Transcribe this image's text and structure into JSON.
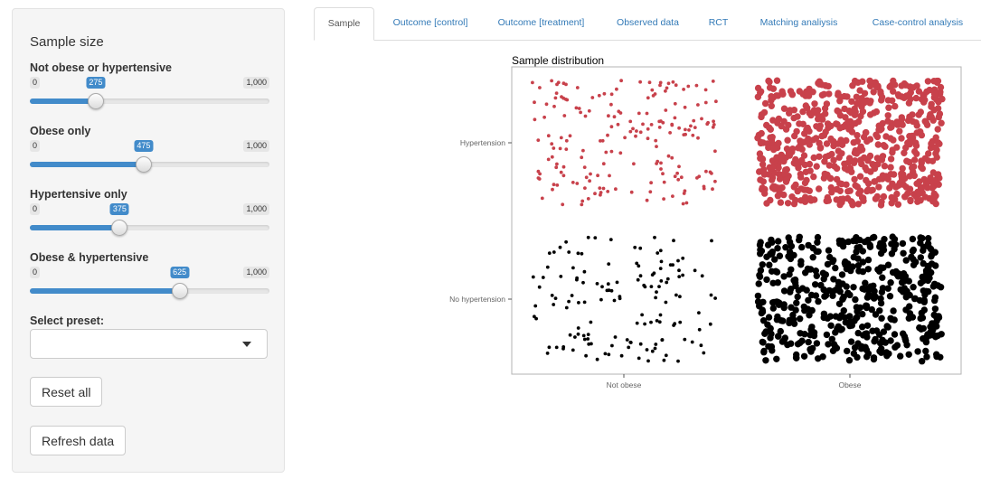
{
  "sidebar": {
    "title": "Sample size",
    "sliders": [
      {
        "label": "Not obese or hypertensive",
        "min": "0",
        "max": "1,000",
        "value": 275
      },
      {
        "label": "Obese only",
        "min": "0",
        "max": "1,000",
        "value": 475
      },
      {
        "label": "Hypertensive only",
        "min": "0",
        "max": "1,000",
        "value": 375
      },
      {
        "label": "Obese & hypertensive",
        "min": "0",
        "max": "1,000",
        "value": 625
      }
    ],
    "slider_range": [
      0,
      1000
    ],
    "preset_label": "Select preset:",
    "preset_value": "",
    "reset_label": "Reset all",
    "refresh_label": "Refresh data",
    "accent_color": "#428bca"
  },
  "tabs": [
    {
      "label": "Sample",
      "active": true
    },
    {
      "label": "Outcome [control]",
      "active": false
    },
    {
      "label": "Outcome [treatment]",
      "active": false
    },
    {
      "label": "Observed data",
      "active": false
    },
    {
      "label": "RCT",
      "active": false
    },
    {
      "label": "Matching analiysis",
      "active": false
    },
    {
      "label": "Case-control analysis",
      "active": false
    }
  ],
  "chart_data": {
    "type": "scatter",
    "title": "Sample distribution",
    "categories_x": [
      "Not obese",
      "Obese"
    ],
    "categories_y": [
      "No hypertension",
      "Hypertension"
    ],
    "xlabel": "",
    "ylabel": "",
    "grid": false,
    "groups": [
      {
        "x": "Not obese",
        "y": "No hypertension",
        "count": 275,
        "color": "#000000",
        "marker": "small"
      },
      {
        "x": "Obese",
        "y": "No hypertension",
        "count": 475,
        "color": "#000000",
        "marker": "large"
      },
      {
        "x": "Not obese",
        "y": "Hypertension",
        "count": 375,
        "color": "#c8414b",
        "marker": "small"
      },
      {
        "x": "Obese",
        "y": "Hypertension",
        "count": 625,
        "color": "#c8414b",
        "marker": "large"
      }
    ]
  }
}
